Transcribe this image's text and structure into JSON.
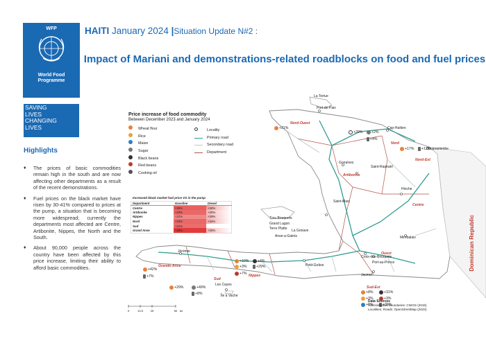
{
  "sidebar": {
    "org_acronym": "WFP",
    "org_name_line1": "World Food",
    "org_name_line2": "Programme",
    "tagline": [
      "SAVING",
      "LIVES",
      "CHANGING",
      "LIVES"
    ],
    "highlights_title": "Highlights",
    "highlights": [
      "The prices of basic commodities remain high in the south and are now affecting other departments as a result of the recent demonstrations.",
      "Fuel prices on the black market have risen by 30-41% compared to prices at the pump, a situation that is becoming more widespread; currently the departments most affected are Centre, Artibonite, Nippes, the North and the South.",
      "About 90,000 people across the country have been affected by this price increase, limiting their ability to afford basic commodities."
    ]
  },
  "header": {
    "country": "HAITI",
    "date": "January 2024",
    "separator": "|",
    "subtitle": "Situation Update N#2 :",
    "title": "Impact of Mariani and demonstrations-related roadblocks on food and fuel prices"
  },
  "legend": {
    "title": "Price increase of food commodity",
    "subtitle": "Between December 2023 and January 2024",
    "commodities": [
      {
        "label": "Wheat flour",
        "color": "#e8813a"
      },
      {
        "label": "Rice",
        "color": "#e8a33a"
      },
      {
        "label": "Maize",
        "color": "#2b7fc4"
      },
      {
        "label": "Sugar",
        "color": "#777777"
      },
      {
        "label": "Black beans",
        "color": "#333333"
      },
      {
        "label": "Red beans",
        "color": "#c0392b"
      },
      {
        "label": "Cooking oil",
        "color": "#555555"
      }
    ],
    "features": [
      {
        "label": "Locality"
      },
      {
        "label": "Primary road",
        "color": "#2e9d8f"
      },
      {
        "label": "Secondary road",
        "color": "#b7c7c3"
      },
      {
        "label": "Department",
        "color": "#b0554a"
      }
    ]
  },
  "fuel_table": {
    "caption": "Increased black market fuel price VS in the pump",
    "headers": [
      "Department",
      "Gasoline",
      "Diesel"
    ],
    "rows": [
      {
        "dept": "Centre",
        "gasoline": "+35%",
        "diesel": "+40%",
        "g": 0.35,
        "d": 0.4
      },
      {
        "dept": "Artibonite",
        "gasoline": "+33%",
        "diesel": "+25%",
        "g": 0.33,
        "d": 0.25
      },
      {
        "dept": "Nippes",
        "gasoline": "+22%",
        "diesel": "+29%",
        "g": 0.22,
        "d": 0.29
      },
      {
        "dept": "Nord",
        "gasoline": "+33%",
        "diesel": "+34%",
        "g": 0.33,
        "d": 0.34
      },
      {
        "dept": "Sud",
        "gasoline": "+31%",
        "diesel": "",
        "g": 0.31,
        "d": 0
      },
      {
        "dept": "Grand Anse",
        "gasoline": "+48%",
        "diesel": "+25%",
        "g": 0.48,
        "d": 0.25
      }
    ]
  },
  "map": {
    "country_label": "Dominican Republic",
    "departments": [
      "Nord-Ouest",
      "Nord",
      "Nord-Est",
      "Artibonite",
      "Centre",
      "Ouest",
      "Grande-Anse",
      "Nippes",
      "Sud",
      "Sud-Est"
    ],
    "localities": [
      "La Tortue",
      "Port-de-Paix",
      "Cap-Haïtien",
      "Ouanaminthe",
      "Gonaïves",
      "Saint-Marc",
      "Saint-Raphaël",
      "Hinche",
      "Mirebalais",
      "Petit-Goâve",
      "Jérémie",
      "Les Cayes",
      "Île à Vache",
      "Jacmel",
      "Croix-des-Bouquets",
      "Port-au-Prince",
      "Trou Bouquets",
      "Grand Lagon",
      "Terre Platte",
      "Saint Marc",
      "La Gonave",
      "Anse-a-Galets"
    ],
    "price_changes": {
      "nord_ouest": "+21%",
      "nord_a": "+20%",
      "nord_b": "+2%",
      "nord_c": "+4%",
      "nord_est_a": "+17%",
      "nord_est_b": "+12%",
      "grande_anse_a": "+42%",
      "grande_anse_b": "+7%",
      "nippes_a": "+10%",
      "nippes_b": "+3%",
      "nippes_c": "+4%",
      "nippes_d": "+29%",
      "nippes_e": "+7%",
      "sud_a": "+29%",
      "sud_b": "+49%",
      "sud_c": "+8%",
      "sud_est_a": "+8%",
      "sud_est_b": "+31%",
      "sud_est_c": "+3%",
      "sud_est_d": "+3%",
      "sud_est_e": "+8%",
      "sud_est_f": "+39%"
    },
    "scale_ticks": [
      "0",
      "12.5",
      "25",
      "50"
    ],
    "scale_unit": "km"
  },
  "sources": {
    "title": "Data Sources",
    "line1": "Administrative boundaries: CNIGS (2018)",
    "line2": "Localities, Roads: OpenStreetMap (2023)"
  }
}
